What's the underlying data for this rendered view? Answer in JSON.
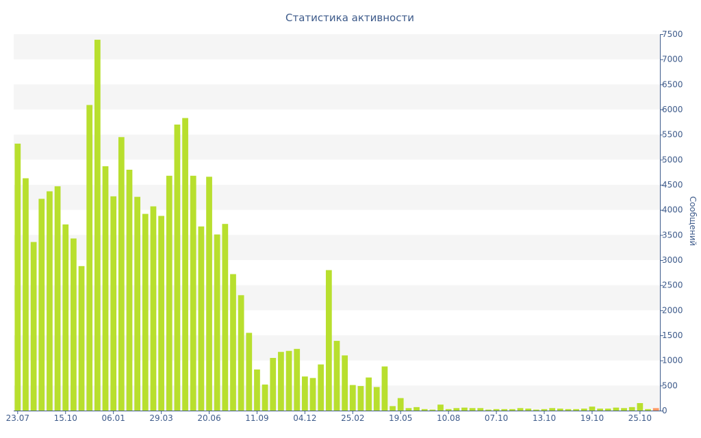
{
  "chart_data": {
    "type": "bar",
    "title": "Статистика активности",
    "xlabel": "",
    "ylabel": "Сообщений",
    "ylim": [
      0,
      7500
    ],
    "yticks": [
      0,
      500,
      1000,
      1500,
      2000,
      2500,
      3000,
      3500,
      4000,
      4500,
      5000,
      5500,
      6000,
      6500,
      7000,
      7500
    ],
    "grid": "horizontal bands",
    "legend": "none",
    "y_axis_side": "right",
    "xtick_labels": [
      {
        "index": 0,
        "label": "23.07"
      },
      {
        "index": 6,
        "label": "15.10"
      },
      {
        "index": 12,
        "label": "06.01"
      },
      {
        "index": 18,
        "label": "29.03"
      },
      {
        "index": 24,
        "label": "20.06"
      },
      {
        "index": 30,
        "label": "11.09"
      },
      {
        "index": 36,
        "label": "04.12"
      },
      {
        "index": 42,
        "label": "25.02"
      },
      {
        "index": 48,
        "label": "19.05"
      },
      {
        "index": 54,
        "label": "10.08"
      },
      {
        "index": 60,
        "label": "07.10"
      },
      {
        "index": 66,
        "label": "13.10"
      },
      {
        "index": 72,
        "label": "19.10"
      },
      {
        "index": 78,
        "label": "25.10"
      }
    ],
    "colors": {
      "bar": "#b8df2e",
      "last_bar": "#ff9966",
      "band": "#f5f5f5",
      "text": "#3d5a8a"
    },
    "values": [
      5320,
      4630,
      3360,
      4220,
      4370,
      4470,
      3710,
      3430,
      2880,
      6090,
      7390,
      4870,
      4270,
      5450,
      4800,
      4260,
      3920,
      4070,
      3880,
      4680,
      5700,
      5830,
      4680,
      3670,
      4660,
      3510,
      3720,
      2720,
      2300,
      1550,
      820,
      520,
      1050,
      1170,
      1190,
      1230,
      680,
      650,
      920,
      2800,
      1390,
      1100,
      510,
      490,
      660,
      470,
      880,
      90,
      250,
      50,
      70,
      30,
      20,
      120,
      30,
      50,
      60,
      50,
      50,
      20,
      30,
      30,
      30,
      50,
      40,
      20,
      30,
      50,
      40,
      30,
      30,
      40,
      80,
      40,
      40,
      60,
      50,
      70,
      150,
      30,
      50
    ]
  }
}
